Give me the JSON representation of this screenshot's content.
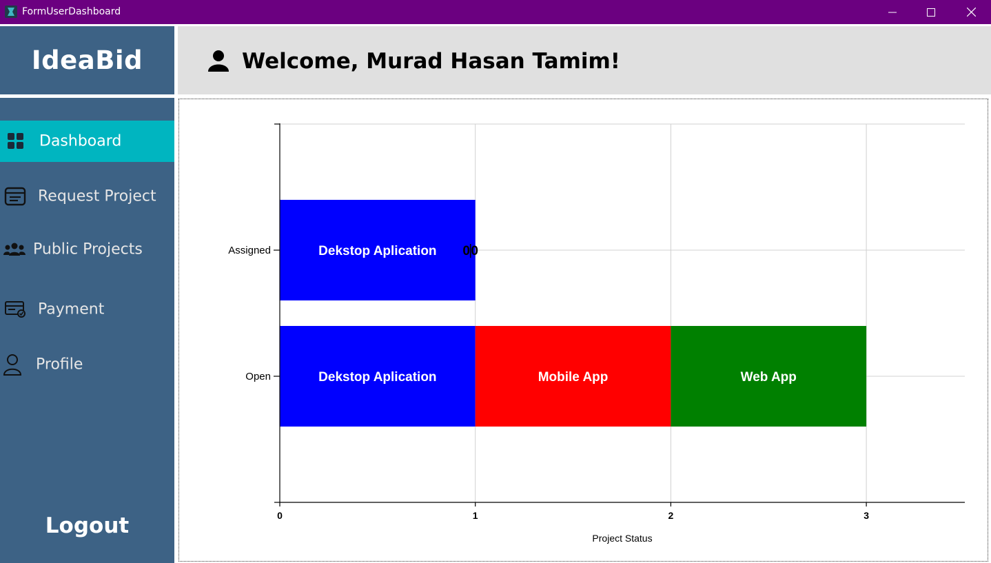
{
  "window": {
    "title": "FormUserDashboard"
  },
  "sidebar": {
    "logo": "IdeaBid",
    "items": [
      {
        "label": "Dashboard",
        "icon": "dashboard-grid-icon",
        "active": true
      },
      {
        "label": "Request Project",
        "icon": "request-form-icon",
        "active": false
      },
      {
        "label": "Public Projects",
        "icon": "users-group-icon",
        "active": false
      },
      {
        "label": "Payment",
        "icon": "payment-card-icon",
        "active": false
      },
      {
        "label": "Profile",
        "icon": "user-outline-icon",
        "active": false
      }
    ],
    "logout": "Logout"
  },
  "header": {
    "welcome": "Welcome, Murad Hasan Tamim!",
    "icon": "user-silhouette-icon"
  },
  "colors": {
    "titlebar": "#6b0080",
    "sidebar": "#3d6285",
    "active_item": "#00b5c0",
    "header_bg": "#e0e0e0"
  },
  "chart_data": {
    "type": "bar",
    "orientation": "horizontal",
    "stacked": true,
    "categories": [
      "Open",
      "Assigned"
    ],
    "series": [
      {
        "name": "Dekstop Aplication",
        "color": "#0000ff",
        "values": [
          1,
          1
        ]
      },
      {
        "name": "Mobile App",
        "color": "#ff0000",
        "values": [
          1,
          0
        ]
      },
      {
        "name": "Web App",
        "color": "#008000",
        "values": [
          1,
          0
        ]
      }
    ],
    "x_ticks": [
      "0",
      "1",
      "2",
      "3"
    ],
    "xlim": [
      0,
      3.5
    ],
    "xlabel": "Project Status",
    "ylabel": "",
    "grid": true,
    "zero_label_text": "0",
    "zero_labels": [
      "0",
      "0"
    ]
  }
}
